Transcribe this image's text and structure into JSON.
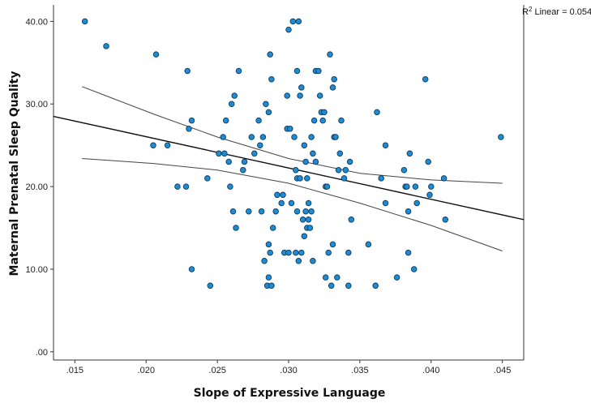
{
  "chart_data": {
    "type": "scatter",
    "title": "",
    "xlabel": "Slope of Expressive Language",
    "ylabel": "Maternal Prenatal Sleep Quality",
    "xlim": [
      0.0135,
      0.0465
    ],
    "ylim": [
      -1,
      42
    ],
    "x_ticks": [
      0.015,
      0.02,
      0.025,
      0.03,
      0.035,
      0.04,
      0.045
    ],
    "x_tick_labels": [
      ".015",
      ".020",
      ".025",
      ".030",
      ".035",
      ".040",
      ".045"
    ],
    "y_ticks": [
      0,
      10,
      20,
      30,
      40
    ],
    "y_tick_labels": [
      ".00",
      "10.00",
      "20.00",
      "30.00",
      "40.00"
    ],
    "grid": false,
    "annotation": {
      "r2_label": "R",
      "r2_sup": "2",
      "r2_text": " Linear = 0.054"
    },
    "fit_line": {
      "x": [
        0.0135,
        0.0465
      ],
      "y": [
        28.5,
        16.0
      ]
    },
    "ci_upper": {
      "x": [
        0.0155,
        0.0205,
        0.025,
        0.03,
        0.035,
        0.04,
        0.045
      ],
      "y": [
        32.1,
        28.8,
        26.0,
        23.4,
        21.6,
        20.8,
        20.4
      ]
    },
    "ci_lower": {
      "x": [
        0.0155,
        0.0205,
        0.025,
        0.03,
        0.035,
        0.04,
        0.045
      ],
      "y": [
        23.4,
        22.8,
        22.0,
        20.4,
        18.0,
        15.3,
        12.2
      ]
    },
    "points": [
      [
        0.0157,
        40
      ],
      [
        0.0172,
        37
      ],
      [
        0.0207,
        36
      ],
      [
        0.0229,
        34
      ],
      [
        0.0205,
        25
      ],
      [
        0.0215,
        25
      ],
      [
        0.0232,
        28
      ],
      [
        0.023,
        27
      ],
      [
        0.0222,
        20
      ],
      [
        0.0228,
        20
      ],
      [
        0.0232,
        10
      ],
      [
        0.0245,
        8
      ],
      [
        0.0243,
        21
      ],
      [
        0.0251,
        24
      ],
      [
        0.0255,
        24
      ],
      [
        0.0258,
        23
      ],
      [
        0.0256,
        28
      ],
      [
        0.0254,
        26
      ],
      [
        0.0262,
        31
      ],
      [
        0.026,
        30
      ],
      [
        0.0265,
        34
      ],
      [
        0.0269,
        23
      ],
      [
        0.0268,
        22
      ],
      [
        0.0272,
        17
      ],
      [
        0.0261,
        17
      ],
      [
        0.0263,
        15
      ],
      [
        0.0259,
        20
      ],
      [
        0.0274,
        26
      ],
      [
        0.0276,
        24
      ],
      [
        0.0279,
        28
      ],
      [
        0.0282,
        26
      ],
      [
        0.028,
        25
      ],
      [
        0.0281,
        17
      ],
      [
        0.0284,
        30
      ],
      [
        0.0286,
        29
      ],
      [
        0.0288,
        33
      ],
      [
        0.0287,
        36
      ],
      [
        0.0283,
        11
      ],
      [
        0.0286,
        13
      ],
      [
        0.0287,
        12
      ],
      [
        0.0286,
        9
      ],
      [
        0.0285,
        8
      ],
      [
        0.0288,
        8
      ],
      [
        0.0289,
        15
      ],
      [
        0.0291,
        17
      ],
      [
        0.0292,
        19
      ],
      [
        0.0295,
        18
      ],
      [
        0.0296,
        19
      ],
      [
        0.0297,
        12
      ],
      [
        0.03,
        12
      ],
      [
        0.0299,
        31
      ],
      [
        0.0299,
        27
      ],
      [
        0.03,
        39
      ],
      [
        0.0301,
        27
      ],
      [
        0.0302,
        18
      ],
      [
        0.0303,
        40
      ],
      [
        0.0307,
        40
      ],
      [
        0.0306,
        34
      ],
      [
        0.0304,
        26
      ],
      [
        0.0305,
        22
      ],
      [
        0.0306,
        21
      ],
      [
        0.0308,
        21
      ],
      [
        0.0308,
        31
      ],
      [
        0.0309,
        32
      ],
      [
        0.0306,
        17
      ],
      [
        0.0307,
        11
      ],
      [
        0.0305,
        12
      ],
      [
        0.0309,
        12
      ],
      [
        0.0311,
        14
      ],
      [
        0.031,
        16
      ],
      [
        0.0312,
        17
      ],
      [
        0.0313,
        21
      ],
      [
        0.0314,
        18
      ],
      [
        0.0313,
        15
      ],
      [
        0.0314,
        16
      ],
      [
        0.0315,
        15
      ],
      [
        0.0316,
        17
      ],
      [
        0.0317,
        11
      ],
      [
        0.0311,
        25
      ],
      [
        0.0312,
        23
      ],
      [
        0.0316,
        26
      ],
      [
        0.0317,
        24
      ],
      [
        0.0319,
        23
      ],
      [
        0.0318,
        28
      ],
      [
        0.0319,
        34
      ],
      [
        0.0321,
        34
      ],
      [
        0.0322,
        31
      ],
      [
        0.0323,
        29
      ],
      [
        0.0324,
        28
      ],
      [
        0.0325,
        29
      ],
      [
        0.0326,
        20
      ],
      [
        0.0327,
        20
      ],
      [
        0.0328,
        12
      ],
      [
        0.0326,
        9
      ],
      [
        0.0329,
        36
      ],
      [
        0.033,
        8
      ],
      [
        0.0331,
        13
      ],
      [
        0.0332,
        33
      ],
      [
        0.0331,
        32
      ],
      [
        0.0332,
        26
      ],
      [
        0.0333,
        26
      ],
      [
        0.0334,
        9
      ],
      [
        0.0336,
        24
      ],
      [
        0.0335,
        22
      ],
      [
        0.0337,
        28
      ],
      [
        0.0339,
        21
      ],
      [
        0.034,
        22
      ],
      [
        0.0342,
        12
      ],
      [
        0.0342,
        8
      ],
      [
        0.0344,
        16
      ],
      [
        0.0343,
        23
      ],
      [
        0.0356,
        13
      ],
      [
        0.0361,
        8
      ],
      [
        0.0362,
        29
      ],
      [
        0.0365,
        21
      ],
      [
        0.0368,
        25
      ],
      [
        0.0368,
        18
      ],
      [
        0.0376,
        9
      ],
      [
        0.0381,
        22
      ],
      [
        0.0382,
        20
      ],
      [
        0.0383,
        20
      ],
      [
        0.0384,
        17
      ],
      [
        0.0385,
        24
      ],
      [
        0.0384,
        12
      ],
      [
        0.0388,
        10
      ],
      [
        0.039,
        18
      ],
      [
        0.0389,
        20
      ],
      [
        0.0396,
        33
      ],
      [
        0.0398,
        23
      ],
      [
        0.0399,
        19
      ],
      [
        0.04,
        20
      ],
      [
        0.0409,
        21
      ],
      [
        0.041,
        16
      ],
      [
        0.0449,
        26
      ]
    ]
  }
}
